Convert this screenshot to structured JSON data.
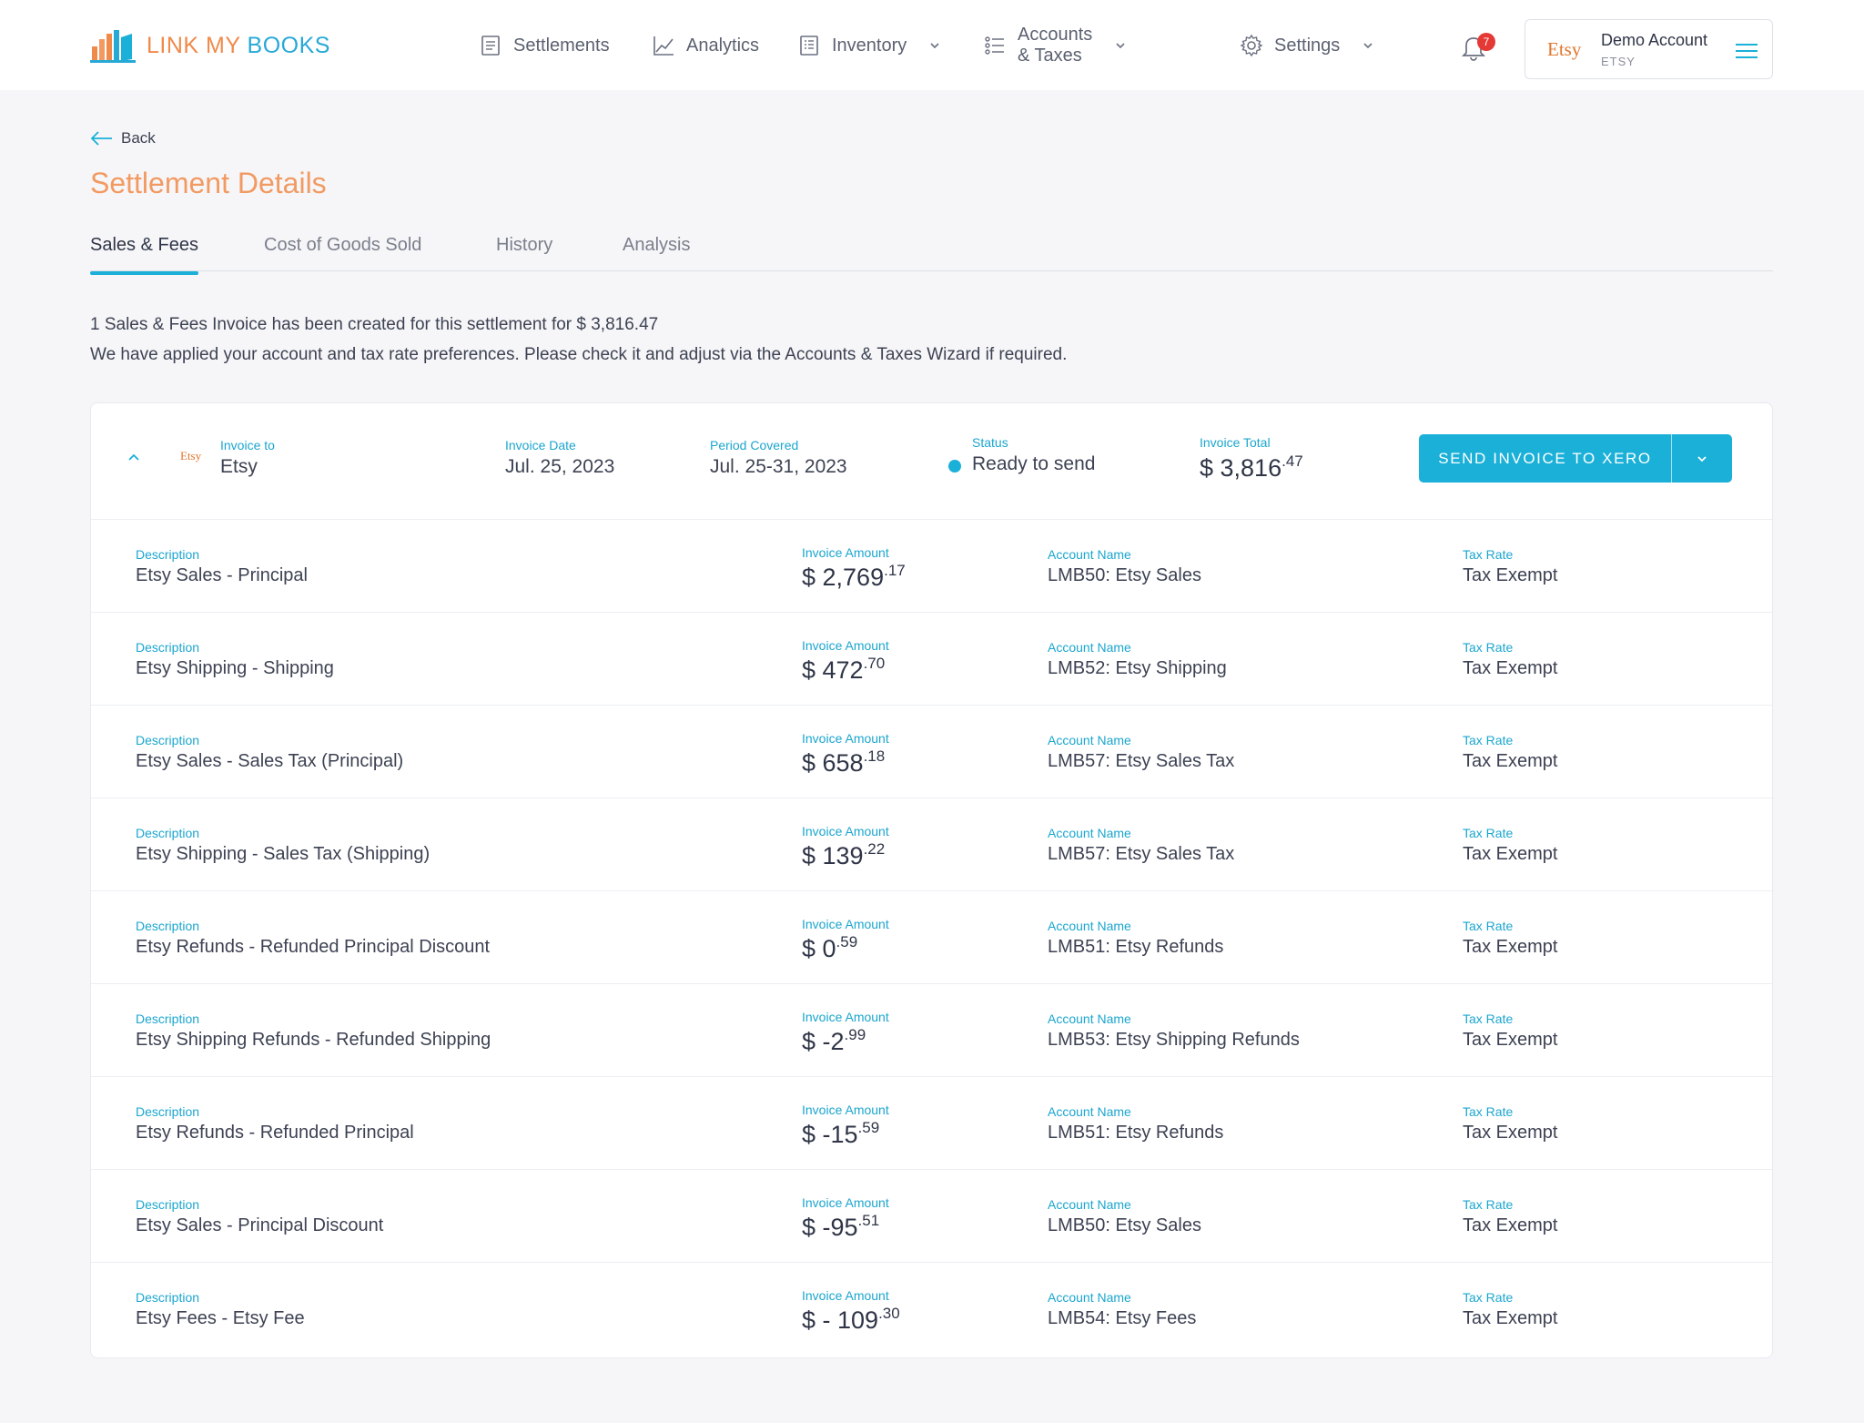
{
  "brand": {
    "part1": "LINK MY ",
    "part2": "BOOKS"
  },
  "nav": {
    "settlements": "Settlements",
    "analytics": "Analytics",
    "inventory": "Inventory",
    "accounts_taxes": "Accounts & Taxes",
    "settings": "Settings"
  },
  "notifications": {
    "count": "7"
  },
  "account": {
    "logo": "Etsy",
    "name": "Demo Account",
    "platform": "ETSY"
  },
  "page": {
    "back": "Back",
    "title": "Settlement Details",
    "info_line1": "1 Sales & Fees Invoice has been created for this settlement for $ 3,816.47",
    "info_line2": "We have applied your account and tax rate preferences. Please check it and adjust via the Accounts & Taxes Wizard if required."
  },
  "tabs": [
    "Sales & Fees",
    "Cost of Goods Sold",
    "History",
    "Analysis"
  ],
  "invoice": {
    "logo": "Etsy",
    "labels": {
      "invoice_to": "Invoice to",
      "invoice_date": "Invoice Date",
      "period": "Period Covered",
      "status": "Status",
      "total": "Invoice Total"
    },
    "invoice_to": "Etsy",
    "invoice_date": "Jul. 25, 2023",
    "period": "Jul. 25-31, 2023",
    "status": "Ready to send",
    "total_main": "$ 3,816",
    "total_cents": ".47",
    "send_button": "SEND INVOICE TO XERO"
  },
  "line_labels": {
    "description": "Description",
    "amount": "Invoice Amount",
    "account": "Account Name",
    "tax": "Tax Rate"
  },
  "lines": [
    {
      "description": "Etsy Sales - Principal",
      "amount_main": "$ 2,769",
      "amount_cents": ".17",
      "account": "LMB50: Etsy Sales",
      "tax": "Tax Exempt"
    },
    {
      "description": "Etsy Shipping - Shipping",
      "amount_main": "$ 472",
      "amount_cents": ".70",
      "account": "LMB52: Etsy Shipping",
      "tax": "Tax Exempt"
    },
    {
      "description": "Etsy Sales - Sales Tax (Principal)",
      "amount_main": "$ 658",
      "amount_cents": ".18",
      "account": "LMB57: Etsy Sales Tax",
      "tax": "Tax Exempt"
    },
    {
      "description": "Etsy Shipping - Sales Tax (Shipping)",
      "amount_main": "$ 139",
      "amount_cents": ".22",
      "account": "LMB57: Etsy Sales Tax",
      "tax": "Tax Exempt"
    },
    {
      "description": "Etsy Refunds - Refunded Principal Discount",
      "amount_main": "$ 0",
      "amount_cents": ".59",
      "account": "LMB51: Etsy Refunds",
      "tax": "Tax Exempt"
    },
    {
      "description": "Etsy Shipping Refunds - Refunded Shipping",
      "amount_main": "$ -2",
      "amount_cents": ".99",
      "account": "LMB53: Etsy Shipping Refunds",
      "tax": "Tax Exempt"
    },
    {
      "description": "Etsy Refunds - Refunded Principal",
      "amount_main": "$ -15",
      "amount_cents": ".59",
      "account": "LMB51: Etsy Refunds",
      "tax": "Tax Exempt"
    },
    {
      "description": "Etsy Sales - Principal Discount",
      "amount_main": "$ -95",
      "amount_cents": ".51",
      "account": "LMB50: Etsy Sales",
      "tax": "Tax Exempt"
    },
    {
      "description": "Etsy Fees - Etsy Fee",
      "amount_main": "$ - 109",
      "amount_cents": ".30",
      "account": "LMB54: Etsy Fees",
      "tax": "Tax Exempt"
    }
  ],
  "colors": {
    "accent": "#1ab0d8",
    "brand_orange": "#f08a4b",
    "alert": "#e53935"
  },
  "icons": {
    "settlements": "document-icon",
    "analytics": "line-chart-icon",
    "inventory": "list-doc-icon",
    "accounts_taxes": "list-icon",
    "settings": "gear-icon",
    "notifications": "bell-icon",
    "account_menu": "hamburger-icon"
  }
}
